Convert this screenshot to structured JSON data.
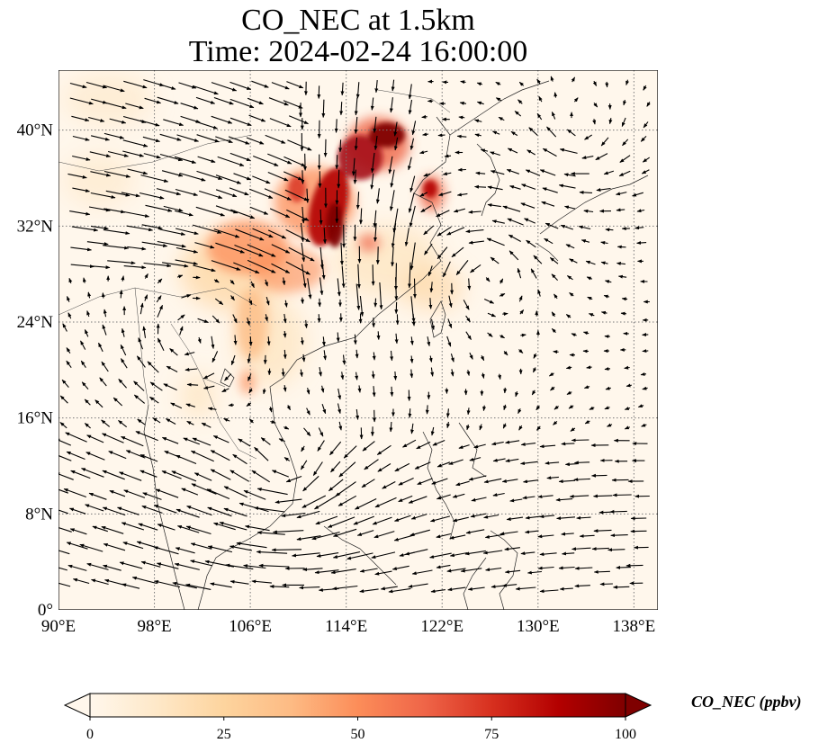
{
  "title": {
    "line1": "CO_NEC at 1.5km",
    "line2": "Time: 2024-02-24 16:00:00"
  },
  "map": {
    "projection": "PlateCarree",
    "lon_range": [
      90,
      140
    ],
    "lat_range": [
      0,
      45
    ],
    "lon_ticks": [
      {
        "value": 90,
        "label": "90°E"
      },
      {
        "value": 98,
        "label": "98°E"
      },
      {
        "value": 106,
        "label": "106°E"
      },
      {
        "value": 114,
        "label": "114°E"
      },
      {
        "value": 122,
        "label": "122°E"
      },
      {
        "value": 130,
        "label": "130°E"
      },
      {
        "value": 138,
        "label": "138°E"
      }
    ],
    "lat_ticks": [
      {
        "value": 0,
        "label": "0°"
      },
      {
        "value": 8,
        "label": "8°N"
      },
      {
        "value": 16,
        "label": "16°N"
      },
      {
        "value": 24,
        "label": "24°N"
      },
      {
        "value": 32,
        "label": "32°N"
      },
      {
        "value": 40,
        "label": "40°N"
      }
    ],
    "gridlines": "dotted",
    "overlay": "wind-vectors",
    "features": [
      "coastlines",
      "country-borders"
    ]
  },
  "colorbar": {
    "cmap": "OrRd",
    "label": "CO_NEC (ppbv)",
    "min": 0,
    "max": 100,
    "extend": "both",
    "ticks": [
      {
        "value": 0,
        "label": "0"
      },
      {
        "value": 25,
        "label": "25"
      },
      {
        "value": 50,
        "label": "50"
      },
      {
        "value": 75,
        "label": "75"
      },
      {
        "value": 100,
        "label": "100"
      }
    ],
    "colors": [
      "#fff7ec",
      "#fee8c8",
      "#fdd49e",
      "#fdbb84",
      "#fc8d59",
      "#ef6548",
      "#d7301f",
      "#b30000",
      "#7f0000"
    ]
  }
}
